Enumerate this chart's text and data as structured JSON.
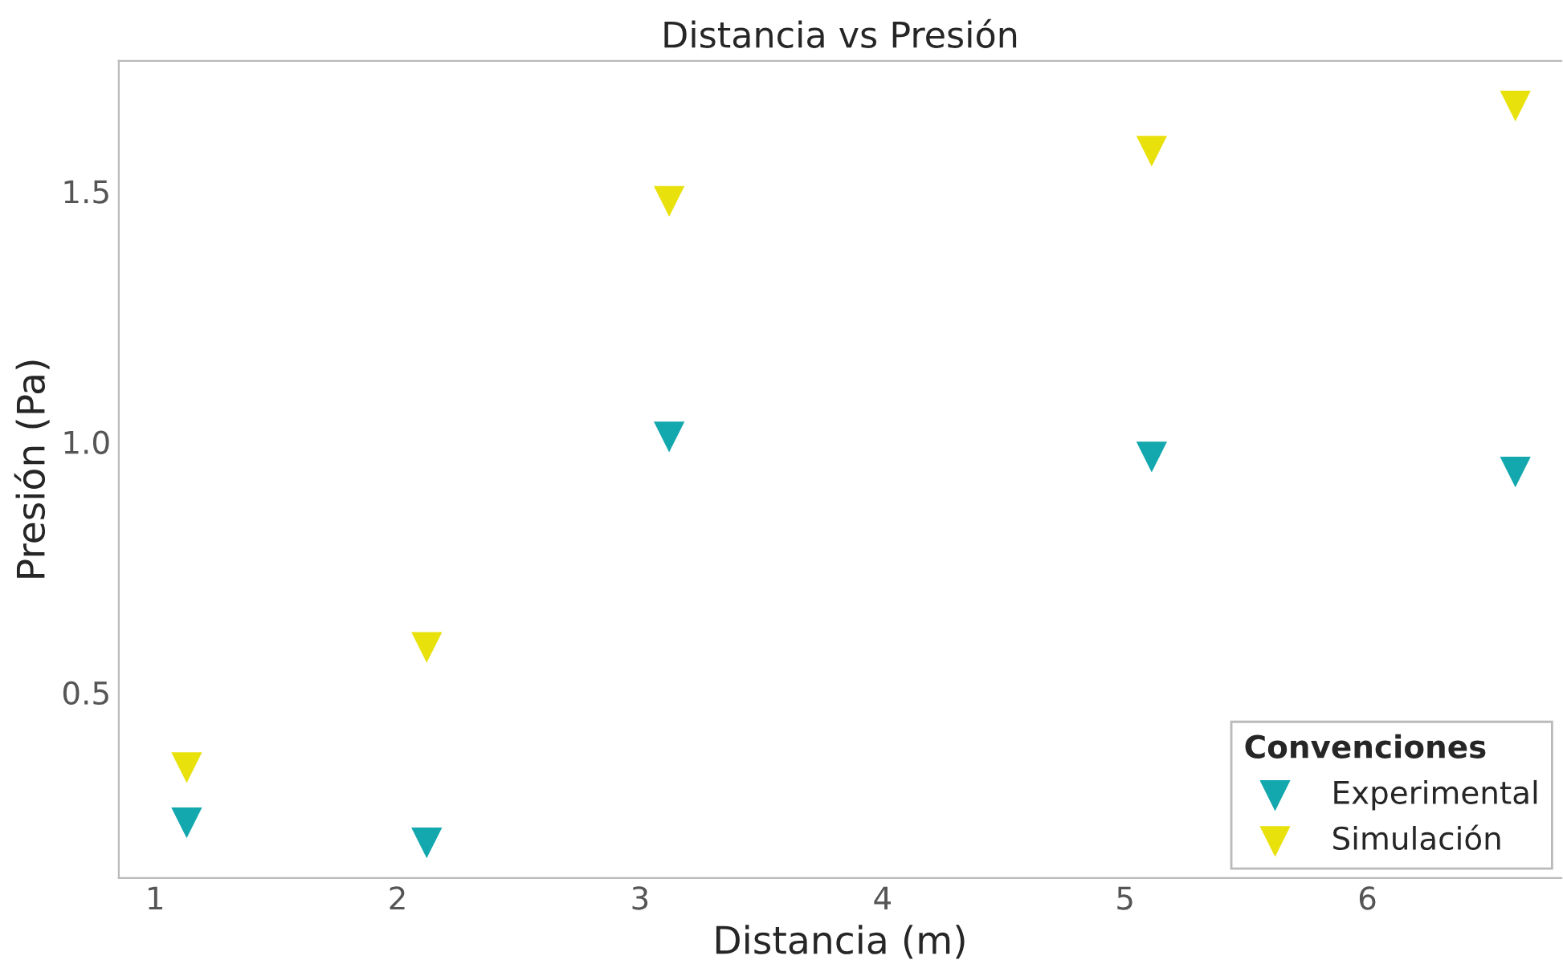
{
  "chart_data": {
    "type": "scatter",
    "title": "Distancia vs Presión",
    "xlabel": "Distancia (m)",
    "ylabel": "Presión (Pa)",
    "legend_title": "Convenciones",
    "series": [
      {
        "name": "Experimental",
        "color": "#12a8ad",
        "x": [
          1.13,
          2.12,
          3.12,
          5.11,
          6.61
        ],
        "values": [
          0.24,
          0.2,
          1.01,
          0.97,
          0.94
        ]
      },
      {
        "name": "Simulación",
        "color": "#e8e10c",
        "x": [
          1.13,
          2.12,
          3.12,
          5.11,
          6.61
        ],
        "values": [
          0.35,
          0.59,
          1.48,
          1.58,
          1.67
        ]
      }
    ],
    "xlim": [
      0.85,
      6.8
    ],
    "ylim": [
      0.13,
      1.76
    ],
    "xticks": [
      1,
      2,
      3,
      4,
      5,
      6
    ],
    "yticks": [
      0.5,
      {
        "value": 1,
        "label": "1.0"
      },
      1.5
    ],
    "marker": "triangle",
    "grid": false,
    "legend": "bottom right"
  }
}
